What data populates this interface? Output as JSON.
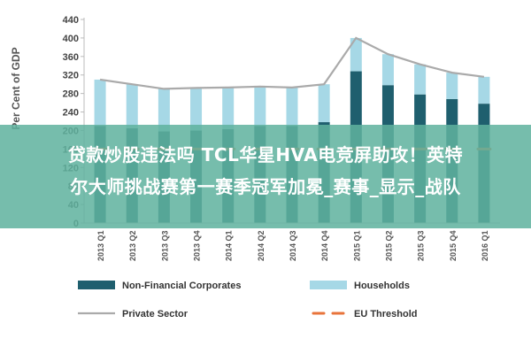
{
  "chart_data": {
    "type": "bar",
    "stacked": true,
    "categories": [
      "2013 Q1",
      "2013 Q2",
      "2013 Q3",
      "2013 Q4",
      "2014 Q1",
      "2014 Q2",
      "2014 Q3",
      "2014 Q4",
      "2015 Q1",
      "2015 Q2",
      "2015 Q3",
      "2015 Q4",
      "2016 Q1"
    ],
    "series": [
      {
        "name": "Non-Financial Corporates",
        "kind": "bar",
        "color": "#1f5f6e",
        "values": [
          210,
          205,
          198,
          200,
          203,
          210,
          210,
          218,
          328,
          298,
          278,
          268,
          258
        ]
      },
      {
        "name": "Households",
        "kind": "bar",
        "color": "#a6d8e6",
        "values": [
          100,
          95,
          92,
          92,
          90,
          85,
          83,
          82,
          72,
          67,
          65,
          57,
          58
        ]
      },
      {
        "name": "Private Sector",
        "kind": "line",
        "color": "#aaaaaa",
        "values": [
          310,
          300,
          290,
          292,
          293,
          295,
          293,
          300,
          400,
          365,
          343,
          325,
          316
        ]
      },
      {
        "name": "EU Threshold",
        "kind": "dash",
        "color": "#e8743b",
        "values": [
          160,
          160,
          160,
          160,
          160,
          160,
          160,
          160,
          160,
          160,
          160,
          160,
          160
        ]
      }
    ],
    "ylabel": "Per Cent of GDP",
    "ylim": [
      0,
      440
    ],
    "yticks": [
      0,
      40,
      80,
      120,
      160,
      200,
      240,
      280,
      320,
      360,
      400,
      440
    ],
    "ytick_labels": [
      "0",
      "40",
      "80",
      "120",
      "160",
      "200",
      "240",
      "280",
      "320",
      "360",
      "400",
      "440"
    ],
    "grid": false,
    "legend_position": "bottom"
  },
  "overlay": {
    "line1": "贷款炒股违法吗 TCL华星HVA电竞屏助攻！英特",
    "line2": "尔大师挑战赛第一赛季冠军加冕_赛事_显示_战队"
  }
}
